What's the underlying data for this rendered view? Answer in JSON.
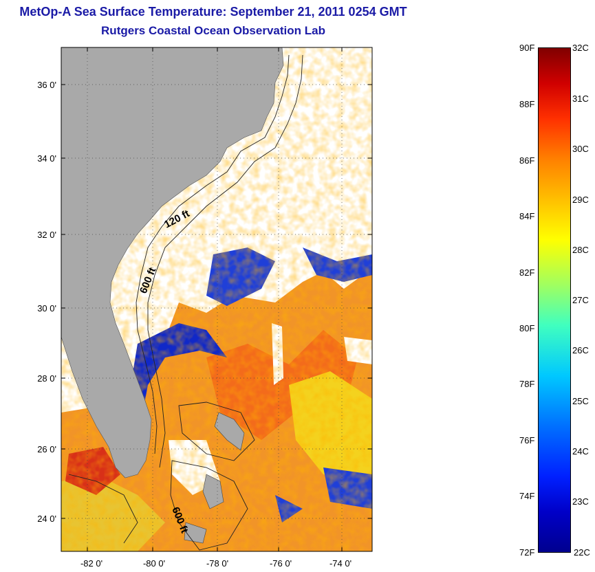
{
  "title_line1": "MetOp-A Sea Surface Temperature:  September 21, 2011 0254 GMT",
  "title_line2": "Rutgers Coastal Ocean Observation Lab",
  "lat_ticks": [
    "36 0'",
    "34 0'",
    "32 0'",
    "30 0'",
    "28 0'",
    "26 0'",
    "24 0'"
  ],
  "lon_ticks": [
    "-82 0'",
    "-80 0'",
    "-78 0'",
    "-76 0'",
    "-74 0'"
  ],
  "depth_labels": [
    "120 ft",
    "600 ft",
    "600 ft"
  ],
  "colorbar": {
    "fahrenheit": [
      "90F",
      "88F",
      "86F",
      "84F",
      "82F",
      "80F",
      "78F",
      "76F",
      "74F",
      "72F"
    ],
    "celsius": [
      "32C",
      "31C",
      "30C",
      "29C",
      "28C",
      "27C",
      "26C",
      "25C",
      "24C",
      "23C",
      "22C"
    ]
  },
  "colors": {
    "title": "#1a1aa6",
    "land": "#a9a9a9",
    "no_data": "#ffffff"
  }
}
